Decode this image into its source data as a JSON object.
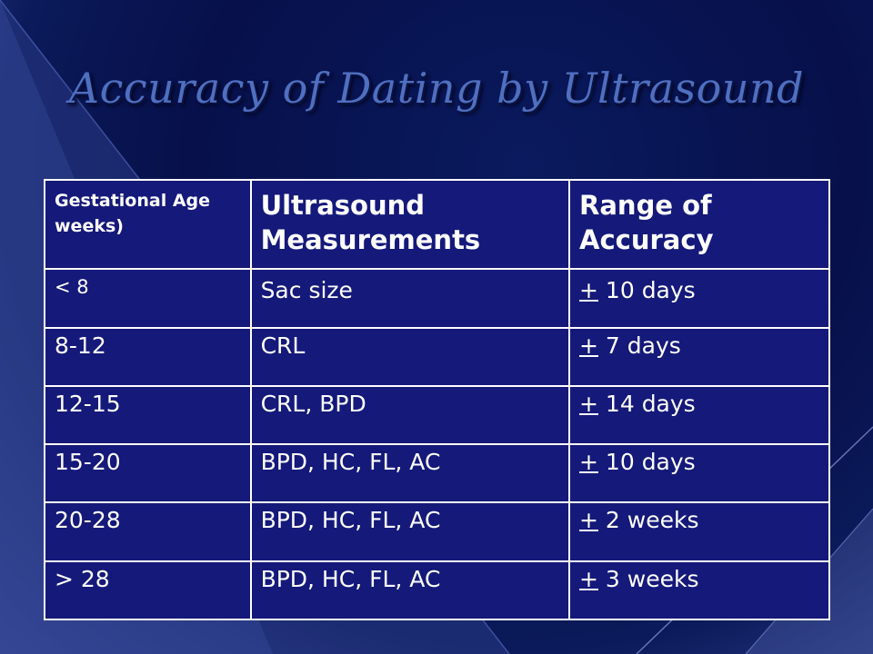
{
  "slide": {
    "title": "Accuracy of Dating by Ultrasound"
  },
  "table": {
    "headers": [
      "Gestational Age weeks)",
      "Ultrasound Measurements",
      "Range of Accuracy"
    ],
    "rows": [
      {
        "age": "< 8",
        "measure": "Sac size",
        "pm": "+",
        "range": " 10 days"
      },
      {
        "age": "8-12",
        "measure": "CRL",
        "pm": "+",
        "range": " 7 days"
      },
      {
        "age": "12-15",
        "measure": "CRL, BPD",
        "pm": "+",
        "range": " 14 days"
      },
      {
        "age": "15-20",
        "measure": "BPD, HC, FL, AC",
        "pm": "+",
        "range": " 10 days"
      },
      {
        "age": "20-28",
        "measure": "BPD, HC, FL, AC",
        "pm": "+",
        "range": " 2 weeks"
      },
      {
        "age": "> 28",
        "measure": "BPD, HC, FL, AC",
        "pm": "+",
        "range": " 3 weeks"
      }
    ]
  },
  "colors": {
    "background": "#07104a",
    "title": "#4f6fc0",
    "table_fill": "#15197a",
    "table_border": "#ffffff"
  }
}
